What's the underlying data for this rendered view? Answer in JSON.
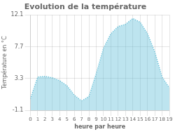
{
  "chart_data": {
    "type": "area",
    "title": "Evolution de la température",
    "xlabel": "heure par heure",
    "ylabel": "Température en °C",
    "x": [
      0,
      1,
      2,
      3,
      4,
      5,
      6,
      7,
      8,
      9,
      10,
      11,
      12,
      13,
      14,
      15,
      16,
      17,
      18,
      19
    ],
    "values": [
      0.5,
      3.5,
      3.6,
      3.4,
      3.0,
      2.3,
      1.0,
      0.2,
      0.8,
      4.0,
      7.5,
      9.5,
      10.5,
      10.8,
      11.6,
      11.1,
      9.5,
      7.0,
      3.5,
      2.0
    ],
    "color": "#5bbcd6",
    "line_style": "dotted",
    "xlim": [
      0,
      19
    ],
    "xticks": [
      0,
      1,
      2,
      3,
      4,
      5,
      6,
      7,
      8,
      9,
      10,
      11,
      12,
      13,
      14,
      15,
      16,
      17,
      18,
      19
    ],
    "ylim": [
      -1.1,
      12.1
    ],
    "yticks": [
      -1.1,
      3.3,
      7.7,
      12.1
    ],
    "grid": true
  }
}
